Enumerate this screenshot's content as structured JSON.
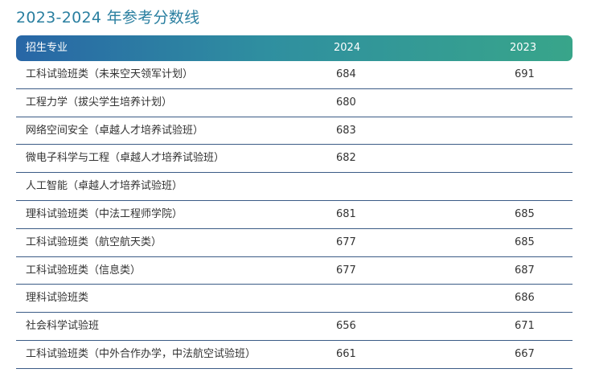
{
  "title": "2023-2024 年参考分数线",
  "table": {
    "headers": [
      "招生专业",
      "2024",
      "2023"
    ],
    "rows": [
      {
        "major": "工科试验班类（未来空天领军计划）",
        "y2024": "684",
        "y2023": "691"
      },
      {
        "major": "工程力学（拔尖学生培养计划）",
        "y2024": "680",
        "y2023": ""
      },
      {
        "major": "网络空间安全（卓越人才培养试验班）",
        "y2024": "683",
        "y2023": ""
      },
      {
        "major": "微电子科学与工程（卓越人才培养试验班）",
        "y2024": "682",
        "y2023": ""
      },
      {
        "major": "人工智能（卓越人才培养试验班）",
        "y2024": "",
        "y2023": ""
      },
      {
        "major": "理科试验班类（中法工程师学院）",
        "y2024": "681",
        "y2023": "685"
      },
      {
        "major": "工科试验班类（航空航天类）",
        "y2024": "677",
        "y2023": "685"
      },
      {
        "major": "工科试验班类（信息类）",
        "y2024": "677",
        "y2023": "687"
      },
      {
        "major": "理科试验班类",
        "y2024": "",
        "y2023": "686"
      },
      {
        "major": "社会科学试验班",
        "y2024": "656",
        "y2023": "671"
      },
      {
        "major": "工科试验班类（中外合作办学，中法航空试验班）",
        "y2024": "661",
        "y2023": "667"
      }
    ]
  }
}
